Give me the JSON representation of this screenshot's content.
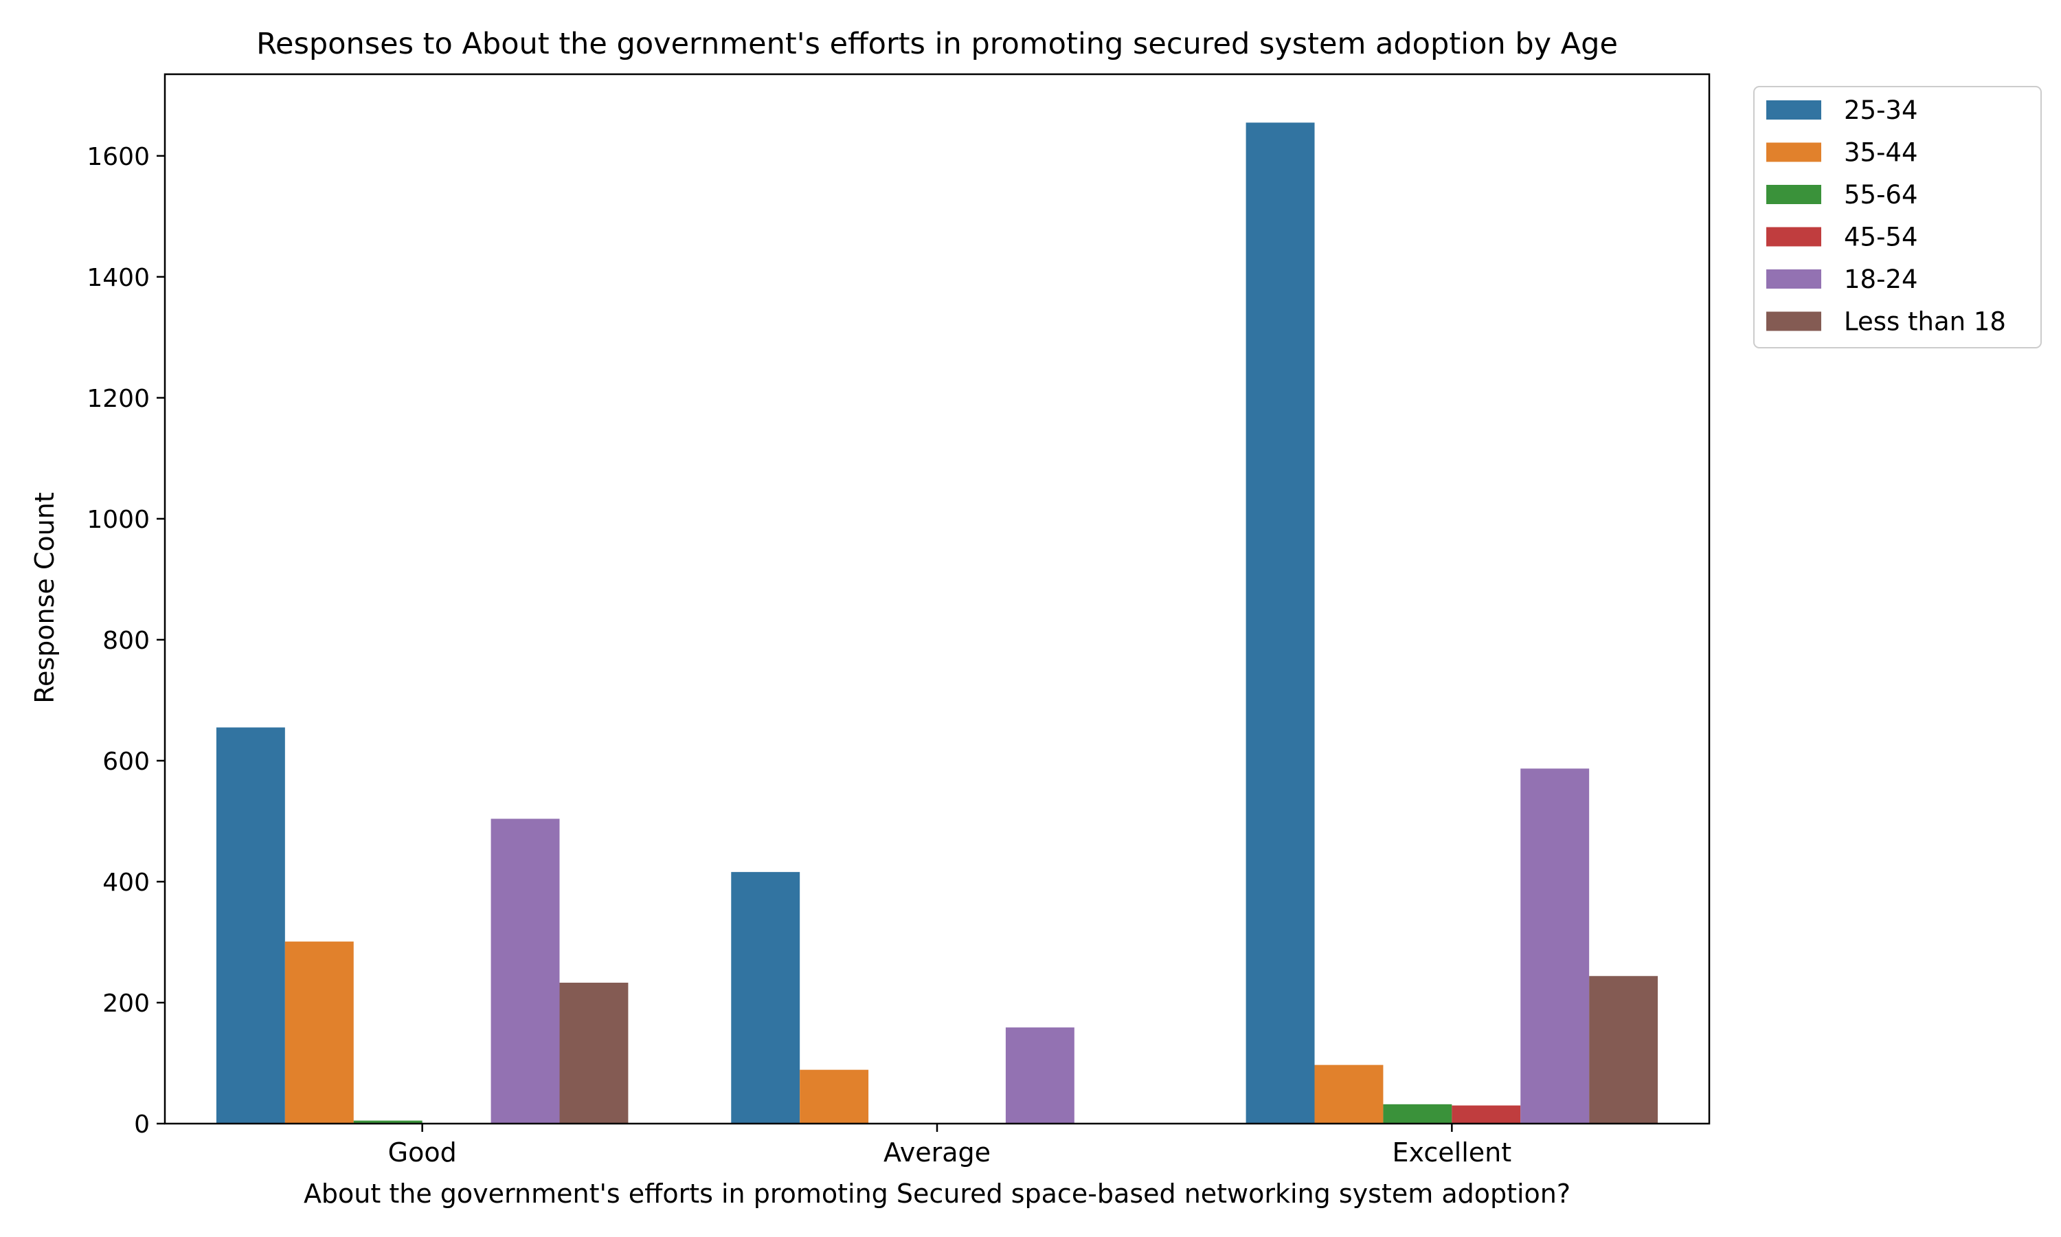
{
  "chart_data": {
    "type": "bar",
    "title": "Responses to About the government's efforts in promoting secured system adoption by Age",
    "xlabel": "About the government's efforts in promoting Secured space-based networking system adoption?",
    "ylabel": "Response Count",
    "categories": [
      "Good",
      "Average",
      "Excellent"
    ],
    "ylim": [
      0,
      1735
    ],
    "yticks": [
      0,
      200,
      400,
      600,
      800,
      1000,
      1200,
      1400,
      1600
    ],
    "ytick_labels": [
      "0",
      "200",
      "400",
      "600",
      "800",
      "1000",
      "1200",
      "1400",
      "1600"
    ],
    "legend_position": "upper-right-outside",
    "series": [
      {
        "name": "25-34",
        "color": "#3274a1",
        "values": [
          655,
          416,
          1655
        ]
      },
      {
        "name": "35-44",
        "color": "#e1812c",
        "values": [
          301,
          89,
          97
        ]
      },
      {
        "name": "55-64",
        "color": "#3a923a",
        "values": [
          5,
          0,
          32
        ]
      },
      {
        "name": "45-54",
        "color": "#c03d3e",
        "values": [
          0,
          0,
          30
        ]
      },
      {
        "name": "18-24",
        "color": "#9372b2",
        "values": [
          504,
          159,
          587
        ]
      },
      {
        "name": "Less than 18",
        "color": "#845b53",
        "values": [
          233,
          0,
          244
        ]
      }
    ]
  }
}
